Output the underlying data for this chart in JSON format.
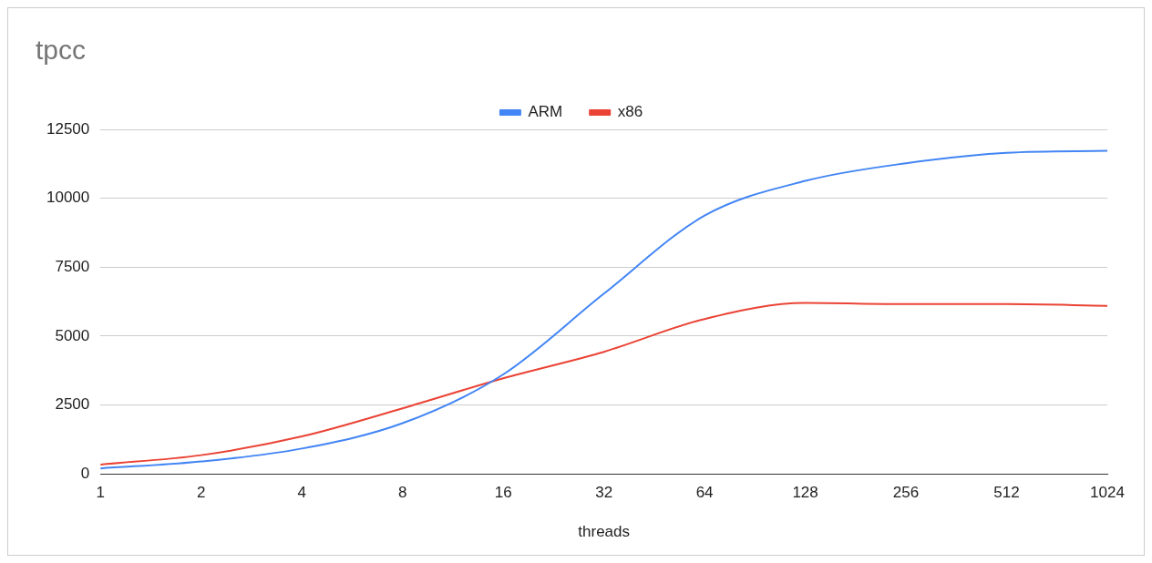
{
  "chart_data": {
    "type": "line",
    "title": "tpcc",
    "xlabel": "threads",
    "categories": [
      "1",
      "2",
      "4",
      "8",
      "16",
      "32",
      "64",
      "128",
      "256",
      "512",
      "1024"
    ],
    "series": [
      {
        "name": "ARM",
        "color": "#4285f4",
        "values": [
          200,
          450,
          920,
          1840,
          3610,
          6540,
          9370,
          10630,
          11270,
          11650,
          11720
        ]
      },
      {
        "name": "x86",
        "color": "#ea4335",
        "values": [
          340,
          680,
          1360,
          2380,
          3470,
          4430,
          5620,
          6200,
          6160,
          6160,
          6100
        ]
      }
    ],
    "ylim": [
      0,
      12500
    ],
    "yticks": [
      0,
      2500,
      5000,
      7500,
      10000,
      12500
    ],
    "grid": "y",
    "legend": "top",
    "marker": "none",
    "line_style": "solid"
  }
}
